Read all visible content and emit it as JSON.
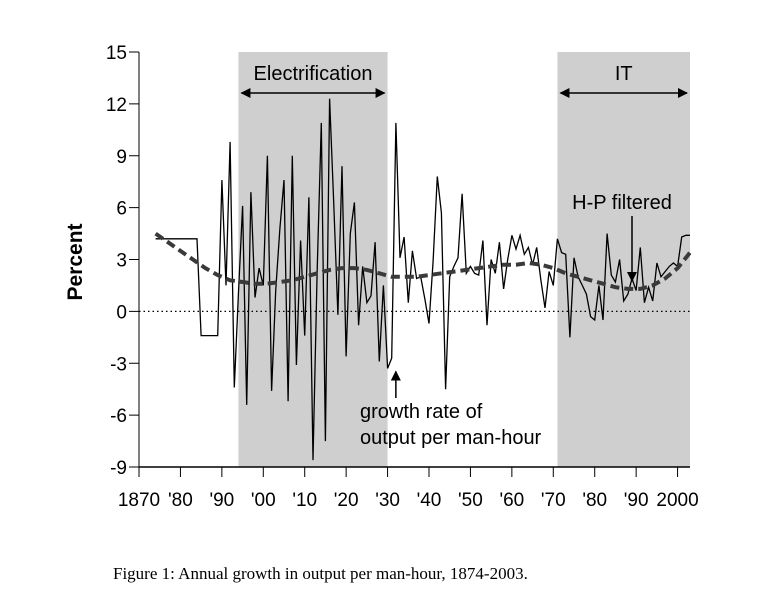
{
  "caption": "Figure 1: Annual growth in output per man-hour, 1874-2003.",
  "chart_data": {
    "type": "line",
    "ylabel": "Percent",
    "xlabel": "",
    "xlim": [
      1870,
      2003
    ],
    "ylim": [
      -9,
      15
    ],
    "y_ticks": [
      -9,
      -6,
      -3,
      0,
      3,
      6,
      9,
      12,
      15
    ],
    "x_ticks": [
      1870,
      1880,
      1890,
      1900,
      1910,
      1920,
      1930,
      1940,
      1950,
      1960,
      1970,
      1980,
      1990,
      2000
    ],
    "x_tick_labels": [
      "1870",
      "'80",
      "'90",
      "'00",
      "'10",
      "'20",
      "'30",
      "'40",
      "'50",
      "'60",
      "'70",
      "'80",
      "'90",
      "2000"
    ],
    "zero_line": "dotted",
    "shaded_regions": [
      {
        "label": "Electrification",
        "start": 1894,
        "end": 1930
      },
      {
        "label": "IT",
        "start": 1971,
        "end": 2003
      }
    ],
    "annotations": [
      {
        "text": [
          "growth rate of",
          "output per man-hour"
        ],
        "points_to_year": 1932,
        "points_to_value": -3.3
      },
      {
        "text": [
          "H-P filtered"
        ],
        "points_to_year": 1989,
        "points_to_value": 1.6
      }
    ],
    "series": [
      {
        "style": "solid",
        "x": [
          1874,
          1875,
          1876,
          1877,
          1878,
          1879,
          1880,
          1881,
          1882,
          1883,
          1884,
          1885,
          1886,
          1887,
          1888,
          1889,
          1890,
          1891,
          1892,
          1893,
          1894,
          1895,
          1896,
          1897,
          1898,
          1899,
          1900,
          1901,
          1902,
          1903,
          1904,
          1905,
          1906,
          1907,
          1908,
          1909,
          1910,
          1911,
          1912,
          1913,
          1914,
          1915,
          1916,
          1917,
          1918,
          1919,
          1920,
          1921,
          1922,
          1923,
          1924,
          1925,
          1926,
          1927,
          1928,
          1929,
          1930,
          1931,
          1932,
          1933,
          1934,
          1935,
          1936,
          1937,
          1938,
          1939,
          1940,
          1941,
          1942,
          1943,
          1944,
          1945,
          1946,
          1947,
          1948,
          1949,
          1950,
          1951,
          1952,
          1953,
          1954,
          1955,
          1956,
          1957,
          1958,
          1959,
          1960,
          1961,
          1962,
          1963,
          1964,
          1965,
          1966,
          1967,
          1968,
          1969,
          1970,
          1971,
          1972,
          1973,
          1974,
          1975,
          1976,
          1977,
          1978,
          1979,
          1980,
          1981,
          1982,
          1983,
          1984,
          1985,
          1986,
          1987,
          1988,
          1989,
          1990,
          1991,
          1992,
          1993,
          1994,
          1995,
          1996,
          1997,
          1998,
          1999,
          2000,
          2001,
          2002,
          2003
        ],
        "values": [
          4.2,
          4.2,
          4.2,
          4.2,
          4.2,
          4.2,
          4.2,
          4.2,
          4.2,
          4.2,
          4.2,
          -1.4,
          -1.4,
          -1.4,
          -1.4,
          -1.4,
          7.6,
          1.5,
          9.8,
          -4.4,
          1.0,
          6.1,
          -5.4,
          6.9,
          0.8,
          2.5,
          1.5,
          9.0,
          -4.6,
          1.2,
          4.8,
          7.6,
          -5.2,
          9.0,
          -3.1,
          4.1,
          -1.4,
          6.6,
          -8.6,
          2.2,
          10.9,
          -7.5,
          12.3,
          6.3,
          -0.2,
          8.4,
          -2.6,
          4.5,
          6.3,
          -0.8,
          2.6,
          0.5,
          0.9,
          4.0,
          -2.9,
          1.5,
          -3.3,
          -2.7,
          10.9,
          3.1,
          4.3,
          0.5,
          3.5,
          1.9,
          2.0,
          0.7,
          -0.7,
          2.9,
          7.8,
          5.7,
          -4.5,
          2.0,
          2.6,
          3.1,
          6.8,
          2.2,
          2.6,
          2.2,
          2.1,
          4.1,
          -0.8,
          3.0,
          2.2,
          4.0,
          1.3,
          3.0,
          4.4,
          3.6,
          4.4,
          3.3,
          3.7,
          2.7,
          3.7,
          1.8,
          0.2,
          2.3,
          1.5,
          4.2,
          3.4,
          3.3,
          -1.5,
          3.1,
          2.0,
          1.5,
          1.0,
          -0.3,
          -0.5,
          1.5,
          -0.5,
          4.5,
          2.1,
          1.7,
          3.0,
          0.6,
          1.0,
          1.9,
          1.2,
          3.7,
          0.5,
          1.4,
          0.6,
          2.8,
          2.0,
          2.3,
          2.6,
          2.8,
          2.6,
          4.3,
          4.4,
          4.4
        ]
      },
      {
        "style": "dashed",
        "x": [
          1874,
          1877,
          1880,
          1883,
          1886,
          1889,
          1892,
          1895,
          1898,
          1901,
          1904,
          1907,
          1910,
          1913,
          1916,
          1919,
          1922,
          1925,
          1928,
          1931,
          1934,
          1937,
          1940,
          1943,
          1946,
          1949,
          1952,
          1955,
          1958,
          1961,
          1964,
          1967,
          1970,
          1973,
          1976,
          1979,
          1982,
          1985,
          1988,
          1991,
          1994,
          1997,
          2000,
          2003
        ],
        "values": [
          4.5,
          4.0,
          3.5,
          3.0,
          2.5,
          2.1,
          1.8,
          1.7,
          1.6,
          1.6,
          1.7,
          1.8,
          2.0,
          2.2,
          2.4,
          2.5,
          2.5,
          2.4,
          2.2,
          2.0,
          2.0,
          2.0,
          2.1,
          2.2,
          2.3,
          2.4,
          2.5,
          2.6,
          2.7,
          2.7,
          2.8,
          2.7,
          2.5,
          2.2,
          2.0,
          1.8,
          1.6,
          1.4,
          1.3,
          1.3,
          1.5,
          1.9,
          2.5,
          3.4
        ]
      }
    ]
  }
}
